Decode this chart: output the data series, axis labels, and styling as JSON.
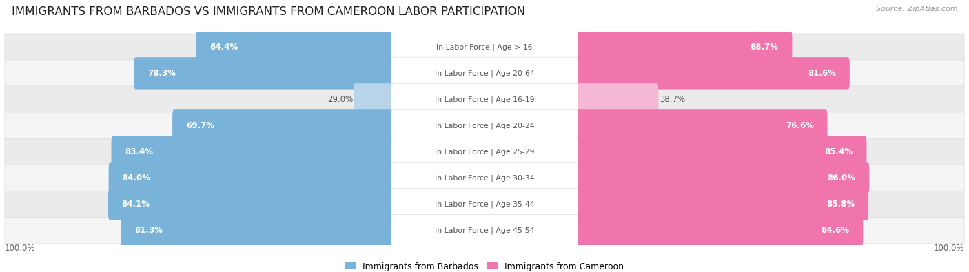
{
  "title": "IMMIGRANTS FROM BARBADOS VS IMMIGRANTS FROM CAMEROON LABOR PARTICIPATION",
  "source": "Source: ZipAtlas.com",
  "categories": [
    "In Labor Force | Age > 16",
    "In Labor Force | Age 20-64",
    "In Labor Force | Age 16-19",
    "In Labor Force | Age 20-24",
    "In Labor Force | Age 25-29",
    "In Labor Force | Age 30-34",
    "In Labor Force | Age 35-44",
    "In Labor Force | Age 45-54"
  ],
  "barbados_values": [
    64.4,
    78.3,
    29.0,
    69.7,
    83.4,
    84.0,
    84.1,
    81.3
  ],
  "cameroon_values": [
    68.7,
    81.6,
    38.7,
    76.6,
    85.4,
    86.0,
    85.8,
    84.6
  ],
  "barbados_color": "#7ab3d9",
  "barbados_light_color": "#b8d4eb",
  "cameroon_color": "#f075ad",
  "cameroon_light_color": "#f5b8d4",
  "row_bg_colors": [
    "#ebebeb",
    "#f5f5f5"
  ],
  "max_value": 100.0,
  "legend_barbados": "Immigrants from Barbados",
  "legend_cameroon": "Immigrants from Cameroon",
  "title_fontsize": 12,
  "cat_fontsize": 7.8,
  "value_fontsize": 8.5
}
